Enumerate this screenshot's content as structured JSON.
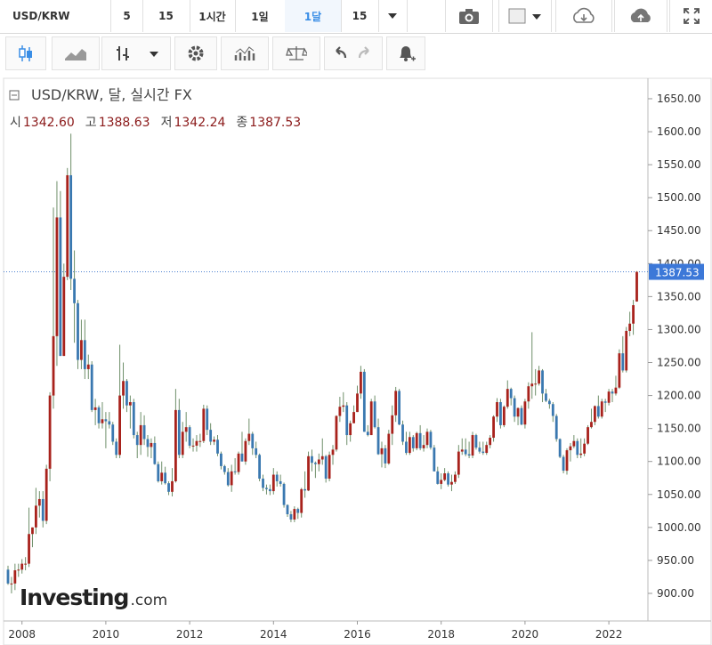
{
  "toolbar": {
    "symbol": "USD/KRW",
    "intervals": [
      "5",
      "15",
      "1시간",
      "1일",
      "1달",
      "15"
    ],
    "active_interval": 4
  },
  "chart_data": {
    "type": "candlestick",
    "title": "USD/KRW, 달, 실시간 FX",
    "ohlc_labels": [
      "시",
      "고",
      "저",
      "종"
    ],
    "last_labels": [
      "1342.60",
      "1388.63",
      "1342.24",
      "1387.53"
    ],
    "watermark": [
      "Investing",
      ".com"
    ],
    "up_color": "#a8221c",
    "down_color": "#3a78b0",
    "wick_color": "#6f8f6a",
    "ylim": [
      859.5,
      1681
    ],
    "yticks": [
      {
        "value": 900,
        "label": "900.00"
      },
      {
        "value": 950,
        "label": "950.00"
      },
      {
        "value": 1000,
        "label": "1000.00"
      },
      {
        "value": 1050,
        "label": "1050.00"
      },
      {
        "value": 1100,
        "label": "1100.00"
      },
      {
        "value": 1150,
        "label": "1150.00"
      },
      {
        "value": 1200,
        "label": "1200.00"
      },
      {
        "value": 1250,
        "label": "1250.00"
      },
      {
        "value": 1300,
        "label": "1300.00"
      },
      {
        "value": 1350,
        "label": "1350.00"
      },
      {
        "value": 1400,
        "label": "1400.00"
      },
      {
        "value": 1450,
        "label": "1450.00"
      },
      {
        "value": 1500,
        "label": "1500.00"
      },
      {
        "value": 1550,
        "label": "1550.00"
      },
      {
        "value": 1600,
        "label": "1600.00"
      },
      {
        "value": 1650,
        "label": "1650.00"
      }
    ],
    "current_price": {
      "value": 1387.53,
      "label": "1387.53"
    },
    "categories": [
      null,
      null,
      null,
      null,
      "2008",
      null,
      null,
      null,
      null,
      null,
      null,
      null,
      null,
      null,
      null,
      null,
      null,
      null,
      null,
      null,
      null,
      null,
      null,
      null,
      null,
      null,
      null,
      null,
      "2010",
      null,
      null,
      null,
      null,
      null,
      null,
      null,
      null,
      null,
      null,
      null,
      null,
      null,
      null,
      null,
      null,
      null,
      null,
      null,
      null,
      null,
      null,
      null,
      "2012",
      null,
      null,
      null,
      null,
      null,
      null,
      null,
      null,
      null,
      null,
      null,
      null,
      null,
      null,
      null,
      null,
      null,
      null,
      null,
      null,
      null,
      null,
      null,
      "2014",
      null,
      null,
      null,
      null,
      null,
      null,
      null,
      null,
      null,
      null,
      null,
      null,
      null,
      null,
      null,
      null,
      null,
      null,
      null,
      null,
      null,
      null,
      null,
      "2016",
      null,
      null,
      null,
      null,
      null,
      null,
      null,
      null,
      null,
      null,
      null,
      null,
      null,
      null,
      null,
      null,
      null,
      null,
      null,
      null,
      null,
      null,
      null,
      "2018",
      null,
      null,
      null,
      null,
      null,
      null,
      null,
      null,
      null,
      null,
      null,
      null,
      null,
      null,
      null,
      null,
      null,
      null,
      null,
      null,
      null,
      null,
      null,
      "2020",
      null,
      null,
      null,
      null,
      null,
      null,
      null,
      null,
      null,
      null,
      null,
      null,
      null,
      null,
      null,
      null,
      null,
      null,
      null,
      null,
      null,
      null,
      null,
      "2022",
      null,
      null,
      null,
      null,
      null,
      null,
      null,
      null
    ],
    "open": [
      936,
      915,
      915,
      935,
      936,
      945,
      945,
      990,
      1000,
      1033,
      1043,
      1010,
      1089,
      1200,
      1290,
      1470,
      1260,
      1380,
      1534,
      1377,
      1340,
      1254,
      1284,
      1240,
      1247,
      1178,
      1182,
      1158,
      1164,
      1161,
      1156,
      1130,
      1110,
      1200,
      1222,
      1185,
      1190,
      1140,
      1125,
      1155,
      1134,
      1122,
      1128,
      1096,
      1070,
      1083,
      1067,
      1054,
      1070,
      1178,
      1110,
      1145,
      1152,
      1124,
      1124,
      1131,
      1131,
      1180,
      1148,
      1130,
      1133,
      1112,
      1093,
      1084,
      1064,
      1085,
      1084,
      1112,
      1100,
      1131,
      1142,
      1120,
      1110,
      1074,
      1060,
      1058,
      1055,
      1080,
      1070,
      1066,
      1034,
      1020,
      1012,
      1028,
      1022,
      1058,
      1056,
      1108,
      1098,
      1096,
      1103,
      1108,
      1074,
      1110,
      1118,
      1169,
      1183,
      1185,
      1140,
      1158,
      1175,
      1203,
      1236,
      1145,
      1140,
      1191,
      1152,
      1111,
      1120,
      1097,
      1142,
      1170,
      1207,
      1156,
      1130,
      1113,
      1137,
      1120,
      1143,
      1120,
      1125,
      1145,
      1121,
      1085,
      1066,
      1072,
      1082,
      1065,
      1069,
      1080,
      1115,
      1118,
      1111,
      1109,
      1140,
      1121,
      1115,
      1113,
      1125,
      1136,
      1168,
      1190,
      1155,
      1183,
      1210,
      1196,
      1168,
      1181,
      1156,
      1191,
      1214,
      1218,
      1218,
      1238,
      1203,
      1192,
      1187,
      1169,
      1134,
      1107,
      1086,
      1117,
      1123,
      1131,
      1110,
      1112,
      1127,
      1152,
      1160,
      1184,
      1168,
      1191,
      1189,
      1206,
      1203,
      1212,
      1264,
      1238,
      1298,
      1309,
      1342.6
    ],
    "high": [
      942,
      925,
      945,
      945,
      952,
      955,
      1030,
      1000,
      1060,
      1055,
      1055,
      1095,
      1205,
      1485,
      1525,
      1510,
      1400,
      1545,
      1597,
      1420,
      1345,
      1315,
      1315,
      1262,
      1252,
      1195,
      1185,
      1190,
      1175,
      1175,
      1160,
      1135,
      1277,
      1250,
      1225,
      1200,
      1195,
      1145,
      1175,
      1170,
      1140,
      1135,
      1138,
      1100,
      1100,
      1092,
      1070,
      1090,
      1210,
      1195,
      1160,
      1175,
      1155,
      1135,
      1140,
      1142,
      1186,
      1185,
      1158,
      1138,
      1140,
      1115,
      1095,
      1090,
      1095,
      1105,
      1115,
      1145,
      1135,
      1165,
      1145,
      1130,
      1112,
      1080,
      1065,
      1065,
      1090,
      1085,
      1080,
      1068,
      1035,
      1025,
      1032,
      1030,
      1060,
      1085,
      1115,
      1118,
      1100,
      1112,
      1135,
      1110,
      1115,
      1125,
      1170,
      1198,
      1205,
      1190,
      1162,
      1185,
      1215,
      1245,
      1240,
      1155,
      1195,
      1200,
      1165,
      1130,
      1125,
      1148,
      1185,
      1213,
      1210,
      1162,
      1145,
      1145,
      1140,
      1145,
      1155,
      1140,
      1150,
      1148,
      1125,
      1092,
      1082,
      1090,
      1085,
      1080,
      1085,
      1125,
      1135,
      1135,
      1130,
      1145,
      1142,
      1130,
      1130,
      1130,
      1140,
      1170,
      1196,
      1195,
      1185,
      1223,
      1212,
      1200,
      1182,
      1185,
      1195,
      1220,
      1296,
      1240,
      1245,
      1240,
      1210,
      1195,
      1190,
      1172,
      1135,
      1110,
      1120,
      1128,
      1140,
      1135,
      1135,
      1135,
      1155,
      1180,
      1185,
      1200,
      1195,
      1195,
      1210,
      1210,
      1230,
      1270,
      1290,
      1304,
      1327,
      1345,
      1388.63
    ],
    "low": [
      913,
      900,
      905,
      925,
      930,
      935,
      940,
      970,
      990,
      1015,
      1000,
      1005,
      1070,
      1180,
      1245,
      1260,
      1260,
      1375,
      1360,
      1280,
      1240,
      1240,
      1225,
      1225,
      1175,
      1155,
      1150,
      1150,
      1120,
      1150,
      1125,
      1105,
      1105,
      1180,
      1175,
      1150,
      1135,
      1105,
      1110,
      1125,
      1107,
      1105,
      1095,
      1068,
      1065,
      1065,
      1049,
      1047,
      1068,
      1105,
      1105,
      1130,
      1120,
      1115,
      1115,
      1122,
      1128,
      1140,
      1125,
      1125,
      1108,
      1088,
      1080,
      1062,
      1054,
      1080,
      1080,
      1100,
      1095,
      1125,
      1110,
      1105,
      1070,
      1055,
      1050,
      1049,
      1050,
      1062,
      1062,
      1030,
      1016,
      1008,
      1008,
      1013,
      1015,
      1045,
      1055,
      1085,
      1075,
      1085,
      1095,
      1068,
      1070,
      1095,
      1115,
      1160,
      1175,
      1125,
      1130,
      1158,
      1175,
      1195,
      1145,
      1138,
      1140,
      1150,
      1110,
      1091,
      1090,
      1095,
      1125,
      1160,
      1155,
      1125,
      1110,
      1110,
      1115,
      1117,
      1117,
      1115,
      1120,
      1118,
      1085,
      1065,
      1058,
      1070,
      1062,
      1055,
      1066,
      1075,
      1110,
      1108,
      1105,
      1105,
      1118,
      1112,
      1110,
      1110,
      1120,
      1130,
      1160,
      1150,
      1152,
      1180,
      1185,
      1160,
      1155,
      1155,
      1150,
      1180,
      1195,
      1200,
      1215,
      1190,
      1190,
      1180,
      1160,
      1130,
      1105,
      1082,
      1080,
      1100,
      1120,
      1105,
      1105,
      1108,
      1125,
      1150,
      1155,
      1165,
      1165,
      1175,
      1185,
      1190,
      1200,
      1210,
      1235,
      1235,
      1290,
      1292,
      1342.24
    ],
    "close": [
      915,
      915,
      935,
      936,
      945,
      945,
      990,
      1000,
      1033,
      1043,
      1010,
      1089,
      1200,
      1290,
      1470,
      1260,
      1380,
      1534,
      1377,
      1340,
      1254,
      1284,
      1240,
      1247,
      1178,
      1182,
      1158,
      1164,
      1161,
      1156,
      1130,
      1110,
      1200,
      1222,
      1185,
      1190,
      1140,
      1125,
      1155,
      1134,
      1122,
      1128,
      1096,
      1070,
      1083,
      1067,
      1054,
      1070,
      1178,
      1110,
      1145,
      1152,
      1124,
      1124,
      1131,
      1131,
      1180,
      1148,
      1130,
      1133,
      1112,
      1093,
      1084,
      1064,
      1085,
      1084,
      1112,
      1100,
      1131,
      1142,
      1120,
      1110,
      1074,
      1060,
      1058,
      1055,
      1080,
      1070,
      1066,
      1034,
      1020,
      1012,
      1028,
      1022,
      1058,
      1056,
      1108,
      1098,
      1096,
      1103,
      1108,
      1074,
      1110,
      1118,
      1169,
      1183,
      1185,
      1140,
      1158,
      1175,
      1203,
      1236,
      1145,
      1140,
      1191,
      1152,
      1111,
      1120,
      1097,
      1142,
      1170,
      1207,
      1156,
      1130,
      1113,
      1137,
      1120,
      1143,
      1120,
      1125,
      1145,
      1121,
      1085,
      1066,
      1072,
      1082,
      1065,
      1069,
      1080,
      1115,
      1118,
      1111,
      1109,
      1140,
      1121,
      1115,
      1113,
      1125,
      1136,
      1168,
      1190,
      1155,
      1183,
      1210,
      1196,
      1168,
      1181,
      1156,
      1191,
      1214,
      1218,
      1218,
      1238,
      1203,
      1192,
      1187,
      1169,
      1134,
      1107,
      1086,
      1117,
      1123,
      1131,
      1110,
      1112,
      1127,
      1152,
      1160,
      1184,
      1168,
      1191,
      1189,
      1206,
      1203,
      1212,
      1264,
      1238,
      1298,
      1309,
      1337,
      1387.53
    ]
  }
}
